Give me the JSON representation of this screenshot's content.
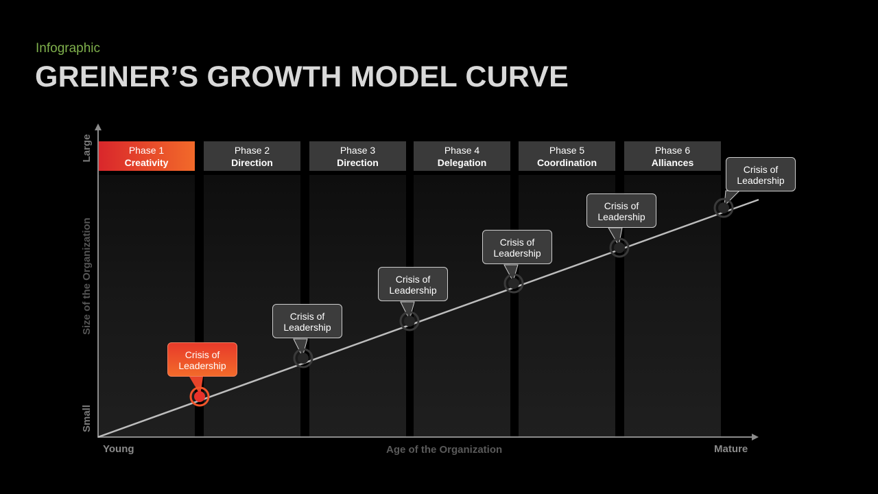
{
  "subtitle": "Infographic",
  "title": "GREINER’S GROWTH MODEL CURVE",
  "y_axis": {
    "label": "Size of the Organization",
    "top": "Large",
    "bottom": "Small"
  },
  "x_axis": {
    "label": "Age of the Organization",
    "left": "Young",
    "right": "Mature"
  },
  "phases": [
    {
      "phase": "Phase 1",
      "name": "Creativity"
    },
    {
      "phase": "Phase 2",
      "name": "Direction"
    },
    {
      "phase": "Phase 3",
      "name": "Direction"
    },
    {
      "phase": "Phase 4",
      "name": "Delegation"
    },
    {
      "phase": "Phase 5",
      "name": "Coordination"
    },
    {
      "phase": "Phase 6",
      "name": "Alliances"
    }
  ],
  "crises": [
    {
      "line1": "Crisis of",
      "line2": "Leadership"
    },
    {
      "line1": "Crisis of",
      "line2": "Leadership"
    },
    {
      "line1": "Crisis of",
      "line2": "Leadership"
    },
    {
      "line1": "Crisis of",
      "line2": "Leadership"
    },
    {
      "line1": "Crisis of",
      "line2": "Leadership"
    },
    {
      "line1": "Crisis of",
      "line2": "Leadership"
    }
  ],
  "colors": {
    "accent_start": "#d9262b",
    "accent_end": "#f26a2a",
    "subtitle": "#7fb04c"
  }
}
